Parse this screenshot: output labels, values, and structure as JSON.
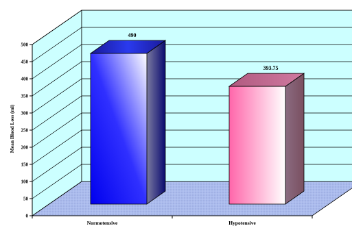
{
  "chart_data": {
    "type": "bar",
    "ylabel": "Mean Blood Loss (ml)",
    "ylim": [
      0,
      500
    ],
    "ytick_step": 50,
    "yticks": [
      "0",
      "50",
      "100",
      "150",
      "200",
      "250",
      "300",
      "350",
      "400",
      "450",
      "500"
    ],
    "grid": true,
    "categories": [
      "Normotensive",
      "Hypotensive"
    ],
    "values": [
      490,
      393.75
    ],
    "value_labels": [
      "490",
      "393.75"
    ],
    "colors": {
      "wall": "#ccffff",
      "floor": "#aabbee",
      "bar_1": "#1a1aee",
      "bar_2": "#ff88bb",
      "gridline": "#000000"
    }
  }
}
